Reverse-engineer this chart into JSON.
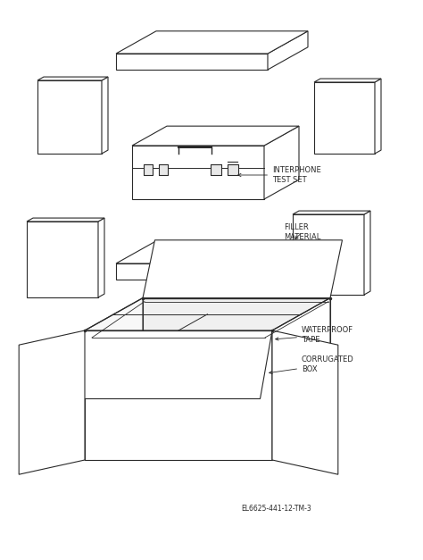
{
  "bg_color": "#ffffff",
  "line_color": "#2a2a2a",
  "text_color": "#2a2a2a",
  "figure_id": "EL6625-441-12-TM-3",
  "labels": {
    "interphone": "INTERPHONE\nTEST SET",
    "filler": "FILLER\nMATERIAL",
    "waterproof": "WATERPROOF\nTAPE",
    "corrugated": "CORRUGATED\nBOX"
  }
}
